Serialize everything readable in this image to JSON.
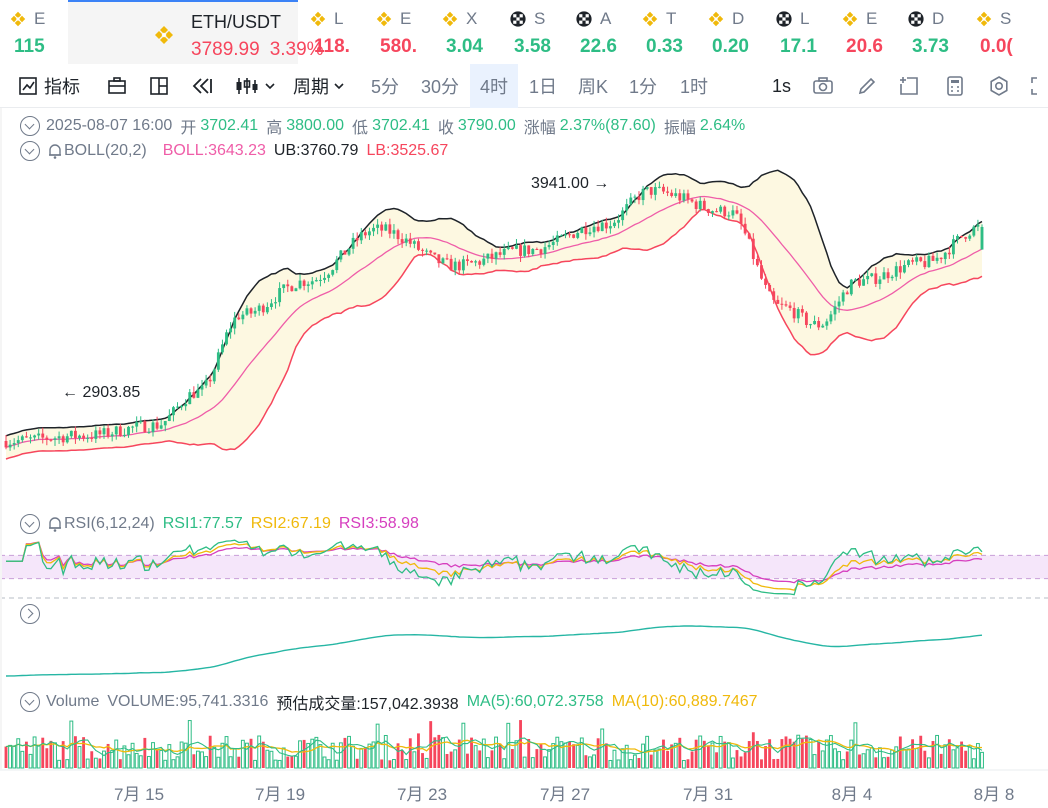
{
  "tickers": [
    {
      "symbol": "E",
      "price": "115",
      "trend": "up",
      "icon": "bnb-icon"
    },
    {
      "symbol": "ETH/USDT",
      "price": "3789.99",
      "change": "3.39%",
      "trend": "down",
      "icon": "bnb-icon",
      "active": true
    },
    {
      "symbol": "L",
      "price": "118.",
      "trend": "down",
      "icon": "bnb-icon"
    },
    {
      "symbol": "E",
      "price": "580.",
      "trend": "down",
      "icon": "bnb-icon"
    },
    {
      "symbol": "X",
      "price": "3.04",
      "trend": "up",
      "icon": "bnb-icon"
    },
    {
      "symbol": "S",
      "price": "3.58",
      "trend": "up",
      "icon": "checker-icon"
    },
    {
      "symbol": "A",
      "price": "22.6",
      "trend": "up",
      "icon": "checker-icon"
    },
    {
      "symbol": "T",
      "price": "0.33",
      "trend": "up",
      "icon": "bnb-icon"
    },
    {
      "symbol": "D",
      "price": "0.20",
      "trend": "up",
      "icon": "bnb-icon"
    },
    {
      "symbol": "L",
      "price": "17.1",
      "trend": "up",
      "icon": "checker-icon"
    },
    {
      "symbol": "E",
      "price": "20.6",
      "trend": "down",
      "icon": "bnb-icon"
    },
    {
      "symbol": "D",
      "price": "3.73",
      "trend": "up",
      "icon": "checker-icon"
    },
    {
      "symbol": "S",
      "price": "0.0(",
      "trend": "down",
      "icon": "bnb-icon"
    }
  ],
  "toolbar": {
    "indicators_label": "指标",
    "period_label": "周期",
    "intervals": [
      "5分",
      "30分",
      "4时",
      "1日",
      "周K",
      "1分",
      "1时"
    ],
    "selected_interval": "4时",
    "refresh_label": "1s"
  },
  "ohlc": {
    "date": "2025-08-07 16:00",
    "open_label": "开",
    "open": "3702.41",
    "high_label": "高",
    "high": "3800.00",
    "low_label": "低",
    "low": "3702.41",
    "close_label": "收",
    "close": "3790.00",
    "change_label": "涨幅",
    "change": "2.37%(87.60)",
    "amplitude_label": "振幅",
    "amplitude": "2.64%"
  },
  "boll": {
    "name": "BOLL(20,2)",
    "mid": "BOLL:3643.23",
    "ub": "UB:3760.79",
    "lb": "LB:3525.67"
  },
  "rsi": {
    "name": "RSI(6,12,24)",
    "rsi1": "RSI1:77.57",
    "rsi2": "RSI2:67.19",
    "rsi3": "RSI3:58.98"
  },
  "volume": {
    "name": "Volume",
    "value": "VOLUME:95,741.3316",
    "forecast": "预估成交量:157,042.3938",
    "ma5": "MA(5):60,072.3758",
    "ma10": "MA(10):60,889.7467"
  },
  "annotations": {
    "high": "3941.00",
    "low": "2903.85"
  },
  "x_axis_labels": [
    "7月 15",
    "7月 19",
    "7月 23",
    "7月 27",
    "7月 31",
    "8月 4",
    "8月 8"
  ],
  "colors": {
    "up": "#2ebd85",
    "down": "#f6465d",
    "accent": "#3b82f6",
    "boll_mid": "#ef5da8",
    "boll_lb": "#f6465d",
    "boll_ub": "#1e2329",
    "rsi1": "#2ebd85",
    "rsi2": "#f0b90b",
    "rsi3": "#d63fbf"
  },
  "chart_data": {
    "type": "candlestick",
    "interval": "4时",
    "price_range": [
      2903.85,
      3941.0
    ],
    "price_anchors": [
      {
        "date": "7月 11",
        "price": 2960
      },
      {
        "date": "7月 13",
        "price": 2980
      },
      {
        "date": "7月 15",
        "price": 3020
      },
      {
        "date": "7月 16",
        "price": 3150
      },
      {
        "date": "7月 17",
        "price": 3450
      },
      {
        "date": "7月 19",
        "price": 3580
      },
      {
        "date": "7月 21",
        "price": 3780
      },
      {
        "date": "7月 23",
        "price": 3640
      },
      {
        "date": "7月 25",
        "price": 3700
      },
      {
        "date": "7月 27",
        "price": 3800
      },
      {
        "date": "7月 28",
        "price": 3930
      },
      {
        "date": "7月 31",
        "price": 3850
      },
      {
        "date": "8月 2",
        "price": 3480
      },
      {
        "date": "8月 3",
        "price": 3410
      },
      {
        "date": "8月 4",
        "price": 3580
      },
      {
        "date": "8月 6",
        "price": 3650
      },
      {
        "date": "8月 7",
        "price": 3790
      }
    ]
  }
}
